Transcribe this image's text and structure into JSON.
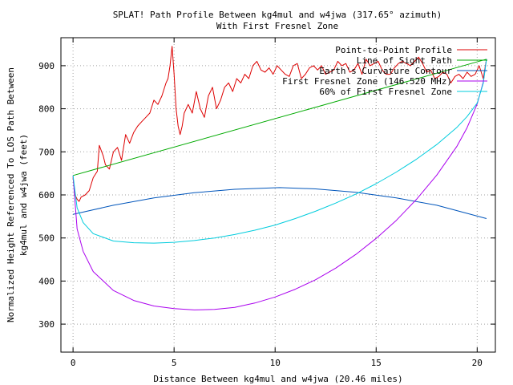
{
  "chart_data": {
    "type": "line",
    "title": "SPLAT! Path Profile Between kg4mul and w4jwa (317.65° azimuth)",
    "subtitle": "With First Fresnel Zone",
    "xlabel": "Distance Between kg4mul and w4jwa (20.46 miles)",
    "ylabel_line1": "Normalized Height Referenced To LOS Path Between",
    "ylabel_line2": "kg4mul and w4jwa (feet)",
    "xlim": [
      -0.6,
      20.9
    ],
    "ylim": [
      235,
      965
    ],
    "x_ticks": [
      0,
      5,
      10,
      15,
      20
    ],
    "x_tick_labels": [
      "0",
      "5",
      "10",
      "15",
      "20"
    ],
    "y_ticks": [
      300,
      400,
      500,
      600,
      700,
      800,
      900
    ],
    "y_tick_labels": [
      "300",
      "400",
      "500",
      "600",
      "700",
      "800",
      "900"
    ],
    "grid": true,
    "legend_position": "top-right",
    "series": [
      {
        "name": "Point-to-Point Profile",
        "color": "#dd0000",
        "x": [
          0,
          0.1,
          0.2,
          0.3,
          0.4,
          0.6,
          0.8,
          1.0,
          1.2,
          1.3,
          1.5,
          1.6,
          1.8,
          2.0,
          2.2,
          2.4,
          2.6,
          2.8,
          3.0,
          3.2,
          3.4,
          3.6,
          3.8,
          4.0,
          4.2,
          4.4,
          4.6,
          4.7,
          4.8,
          4.9,
          5.0,
          5.1,
          5.2,
          5.3,
          5.4,
          5.5,
          5.7,
          5.9,
          6.1,
          6.3,
          6.5,
          6.7,
          6.9,
          7.1,
          7.3,
          7.5,
          7.7,
          7.9,
          8.1,
          8.3,
          8.5,
          8.7,
          8.9,
          9.1,
          9.3,
          9.5,
          9.7,
          9.9,
          10.1,
          10.3,
          10.5,
          10.7,
          10.9,
          11.1,
          11.3,
          11.5,
          11.7,
          11.9,
          12.1,
          12.3,
          12.5,
          12.7,
          12.9,
          13.1,
          13.3,
          13.5,
          13.7,
          13.9,
          14.1,
          14.3,
          14.5,
          14.7,
          14.9,
          15.1,
          15.3,
          15.5,
          15.7,
          15.9,
          16.1,
          16.3,
          16.5,
          16.7,
          16.9,
          17.1,
          17.3,
          17.5,
          17.7,
          17.9,
          18.1,
          18.3,
          18.5,
          18.7,
          18.9,
          19.1,
          19.3,
          19.5,
          19.7,
          19.9,
          20.1,
          20.3,
          20.46
        ],
        "y": [
          640,
          600,
          590,
          585,
          595,
          600,
          610,
          640,
          655,
          715,
          690,
          670,
          660,
          700,
          710,
          680,
          740,
          720,
          745,
          760,
          770,
          780,
          790,
          820,
          810,
          830,
          860,
          870,
          900,
          945,
          880,
          800,
          760,
          740,
          760,
          790,
          810,
          790,
          840,
          800,
          780,
          830,
          850,
          800,
          820,
          850,
          860,
          840,
          870,
          860,
          880,
          870,
          900,
          910,
          890,
          885,
          895,
          880,
          900,
          890,
          880,
          875,
          900,
          905,
          870,
          880,
          895,
          900,
          890,
          900,
          880,
          885,
          890,
          910,
          900,
          905,
          885,
          890,
          905,
          880,
          915,
          900,
          905,
          910,
          890,
          880,
          880,
          895,
          905,
          910,
          905,
          900,
          910,
          920,
          905,
          885,
          890,
          870,
          875,
          885,
          880,
          860,
          875,
          880,
          870,
          885,
          875,
          880,
          900,
          870,
          915
        ]
      },
      {
        "name": "Line of Sight Path",
        "color": "#00aa00",
        "x": [
          0,
          20.46
        ],
        "y": [
          645,
          915
        ]
      },
      {
        "name": "Earth's Curvature Contour",
        "color": "#0055bb",
        "x": [
          0,
          2,
          4,
          6,
          8,
          10.23,
          12,
          14,
          16,
          18,
          20.46
        ],
        "y": [
          555,
          576,
          593,
          605,
          613,
          617,
          614,
          606,
          593,
          576,
          545
        ]
      },
      {
        "name": "First Fresnel Zone (146.520 MHz)",
        "color": "#aa00ee",
        "x": [
          0,
          0.2,
          0.5,
          1,
          2,
          3,
          4,
          5,
          6,
          7,
          8,
          9,
          10,
          11,
          12,
          13,
          14,
          15,
          16,
          17,
          18,
          19,
          19.5,
          20,
          20.3,
          20.46
        ],
        "y": [
          645,
          521,
          469,
          422,
          378,
          355,
          342,
          336,
          333,
          334,
          339,
          349,
          363,
          381,
          403,
          430,
          462,
          499,
          541,
          590,
          646,
          713,
          756,
          811,
          862,
          915
        ]
      },
      {
        "name": "60% of First Fresnel Zone",
        "color": "#00ccdd",
        "x": [
          0,
          0.2,
          0.5,
          1,
          2,
          3,
          4,
          5,
          6,
          7,
          8,
          9,
          10,
          11,
          12,
          13,
          14,
          15,
          16,
          17,
          18,
          19,
          19.5,
          20,
          20.3,
          20.46
        ],
        "y": [
          645,
          570,
          536,
          510,
          493,
          489,
          488,
          490,
          494,
          500,
          508,
          518,
          530,
          545,
          562,
          581,
          602,
          626,
          653,
          683,
          717,
          757,
          782,
          813,
          859,
          915
        ]
      }
    ]
  }
}
